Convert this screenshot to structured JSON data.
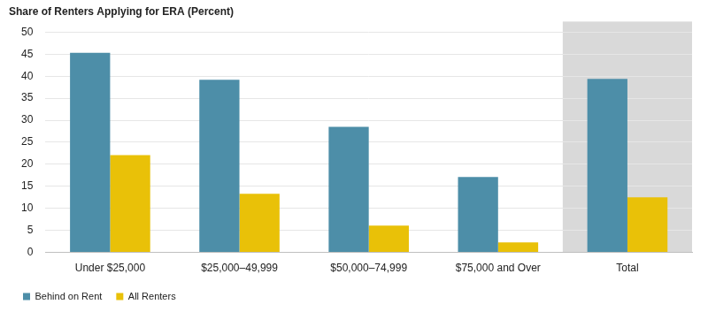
{
  "chart_data": {
    "type": "bar",
    "title": "Share of Renters Applying for ERA (Percent)",
    "categories": [
      "Under $25,000",
      "$25,000–49,999",
      "$50,000–74,999",
      "$75,000 and Over",
      "Total"
    ],
    "series": [
      {
        "name": "Behind on Rent",
        "color": "#4d8ea8",
        "values": [
          45.3,
          39.2,
          28.5,
          17.1,
          39.4
        ]
      },
      {
        "name": "All Renters",
        "color": "#e9c108",
        "values": [
          22.1,
          13.3,
          6.1,
          2.3,
          12.5
        ]
      }
    ],
    "ylim": [
      0,
      50
    ],
    "yticks": [
      0,
      5,
      10,
      15,
      20,
      25,
      30,
      35,
      40,
      45,
      50
    ],
    "grid": true,
    "legend": "bottom"
  }
}
